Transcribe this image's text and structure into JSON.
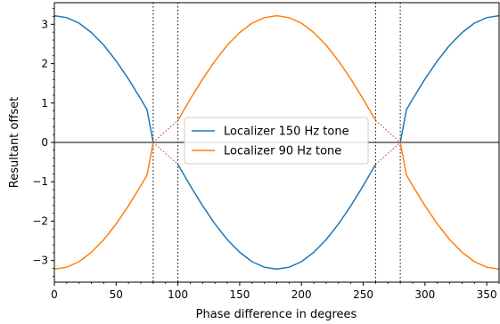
{
  "chart_data": {
    "type": "line",
    "xlabel": "Phase difference in degrees",
    "ylabel": "Resultant offset",
    "xlim": [
      0,
      360
    ],
    "ylim": [
      -3.55,
      3.55
    ],
    "xticks": [
      0,
      50,
      100,
      150,
      200,
      250,
      300,
      350
    ],
    "yticks": [
      -3,
      -2,
      -1,
      0,
      1,
      2,
      3
    ],
    "ytick_labels": [
      "−3",
      "−2",
      "−1",
      "0",
      "1",
      "2",
      "3"
    ],
    "grid": false,
    "legend_position": "center",
    "zero_line": {
      "y": 0,
      "color": "#000000"
    },
    "vlines": [
      {
        "x": 80,
        "style": "dotted",
        "color": "#000000"
      },
      {
        "x": 100,
        "style": "dotted",
        "color": "#000000"
      },
      {
        "x": 260,
        "style": "dotted",
        "color": "#000000"
      },
      {
        "x": 280,
        "style": "dotted",
        "color": "#000000"
      }
    ],
    "red_dotted_segments": {
      "color": "#d62728",
      "x": [
        80,
        100,
        80,
        100,
        260,
        280,
        260,
        280
      ],
      "y": [
        0,
        0.56,
        0,
        -0.56,
        0.56,
        0,
        -0.56,
        0
      ]
    },
    "series": [
      {
        "name": "Localizer 150 Hz tone",
        "color": "#1f77b4",
        "x": [
          0,
          10,
          20,
          30,
          40,
          50,
          60,
          70,
          75,
          80,
          100,
          110,
          120,
          130,
          140,
          150,
          160,
          170,
          180,
          190,
          200,
          210,
          220,
          230,
          240,
          250,
          260,
          280,
          285,
          290,
          300,
          310,
          320,
          330,
          340,
          350,
          360
        ],
        "y": [
          3.22,
          3.17,
          3.03,
          2.79,
          2.47,
          2.07,
          1.61,
          1.1,
          0.83,
          0,
          -0.56,
          -1.1,
          -1.61,
          -2.07,
          -2.47,
          -2.79,
          -3.03,
          -3.17,
          -3.22,
          -3.17,
          -3.03,
          -2.79,
          -2.47,
          -2.07,
          -1.61,
          -1.1,
          -0.56,
          0,
          0.83,
          1.1,
          1.61,
          2.07,
          2.47,
          2.79,
          3.03,
          3.17,
          3.22
        ]
      },
      {
        "name": "Localizer 90 Hz tone",
        "color": "#ff7f0e",
        "x": [
          0,
          10,
          20,
          30,
          40,
          50,
          60,
          70,
          75,
          80,
          100,
          110,
          120,
          130,
          140,
          150,
          160,
          170,
          180,
          190,
          200,
          210,
          220,
          230,
          240,
          250,
          260,
          280,
          285,
          290,
          300,
          310,
          320,
          330,
          340,
          350,
          360
        ],
        "y": [
          -3.22,
          -3.17,
          -3.03,
          -2.79,
          -2.47,
          -2.07,
          -1.61,
          -1.1,
          -0.83,
          0,
          0.56,
          1.1,
          1.61,
          2.07,
          2.47,
          2.79,
          3.03,
          3.17,
          3.22,
          3.17,
          3.03,
          2.79,
          2.47,
          2.07,
          1.61,
          1.1,
          0.56,
          0,
          -0.83,
          -1.1,
          -1.61,
          -2.07,
          -2.47,
          -2.79,
          -3.03,
          -3.17,
          -3.22
        ]
      }
    ]
  }
}
